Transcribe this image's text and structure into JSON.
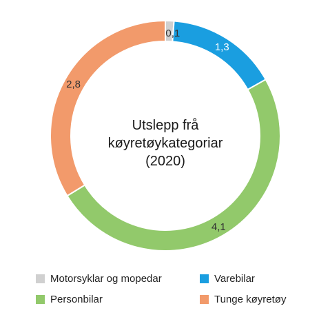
{
  "chart_data": {
    "type": "pie",
    "variant": "donut",
    "title": "Utslepp frå køyretøykategoriar (2020)",
    "title_lines": [
      "Utslepp frå",
      "køyretøykategoriar",
      "(2020)"
    ],
    "slices": [
      {
        "label": "Motorsyklar og mopedar",
        "value": 0.1,
        "value_label": "0,1",
        "color": "#d0d0d0",
        "label_color": "#333333"
      },
      {
        "label": "Varebilar",
        "value": 1.3,
        "value_label": "1,3",
        "color": "#1a9ee0",
        "label_color": "#ffffff"
      },
      {
        "label": "Personbilar",
        "value": 4.1,
        "value_label": "4,1",
        "color": "#92c96b",
        "label_color": "#333333"
      },
      {
        "label": "Tunge køyretøy",
        "value": 2.8,
        "value_label": "2,8",
        "color": "#f29a6b",
        "label_color": "#333333"
      }
    ],
    "legend_position": "bottom"
  },
  "legend": {
    "items": [
      {
        "label": "Motorsyklar og mopedar",
        "color": "#d0d0d0"
      },
      {
        "label": "Varebilar",
        "color": "#1a9ee0"
      },
      {
        "label": "Personbilar",
        "color": "#92c96b"
      },
      {
        "label": "Tunge køyretøy",
        "color": "#f29a6b"
      }
    ]
  }
}
